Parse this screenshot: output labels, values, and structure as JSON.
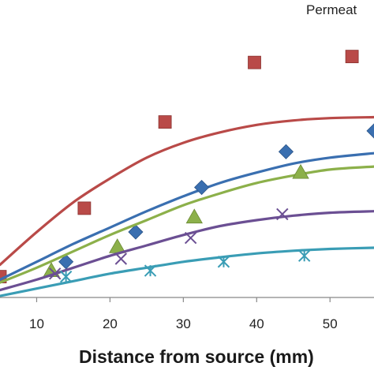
{
  "chart_data": {
    "type": "scatter",
    "title": "",
    "legend_title": "Permeat",
    "xlabel": "Distance from source  (mm)",
    "ylabel": "",
    "xlim": [
      5,
      56
    ],
    "ylim": [
      0,
      1
    ],
    "x_ticks": [
      "10",
      "20",
      "30",
      "40",
      "50"
    ],
    "x_tick_values": [
      10,
      20,
      30,
      40,
      50
    ],
    "grid": false,
    "legend_position": "top-right",
    "series": [
      {
        "color": "#b94a48",
        "marker": "square",
        "points": [
          {
            "x": 5,
            "y": 0.07
          },
          {
            "x": 16.5,
            "y": 0.3
          },
          {
            "x": 27.5,
            "y": 0.59
          },
          {
            "x": 39.7,
            "y": 0.79
          },
          {
            "x": 53,
            "y": 0.81
          }
        ],
        "curve": [
          {
            "x": 5,
            "y": 0.11
          },
          {
            "x": 10,
            "y": 0.22
          },
          {
            "x": 15,
            "y": 0.32
          },
          {
            "x": 20,
            "y": 0.4
          },
          {
            "x": 25,
            "y": 0.47
          },
          {
            "x": 30,
            "y": 0.52
          },
          {
            "x": 35,
            "y": 0.555
          },
          {
            "x": 40,
            "y": 0.58
          },
          {
            "x": 45,
            "y": 0.595
          },
          {
            "x": 50,
            "y": 0.603
          },
          {
            "x": 56,
            "y": 0.606
          }
        ]
      },
      {
        "color": "#3a6fb0",
        "marker": "diamond",
        "points": [
          {
            "x": 14,
            "y": 0.12
          },
          {
            "x": 23.5,
            "y": 0.22
          },
          {
            "x": 32.5,
            "y": 0.37
          },
          {
            "x": 44,
            "y": 0.49
          },
          {
            "x": 56,
            "y": 0.56
          }
        ],
        "curve": [
          {
            "x": 5,
            "y": 0.06
          },
          {
            "x": 10,
            "y": 0.12
          },
          {
            "x": 15,
            "y": 0.18
          },
          {
            "x": 20,
            "y": 0.235
          },
          {
            "x": 25,
            "y": 0.29
          },
          {
            "x": 30,
            "y": 0.34
          },
          {
            "x": 35,
            "y": 0.385
          },
          {
            "x": 40,
            "y": 0.42
          },
          {
            "x": 45,
            "y": 0.45
          },
          {
            "x": 50,
            "y": 0.47
          },
          {
            "x": 56,
            "y": 0.485
          }
        ]
      },
      {
        "color": "#8cb04a",
        "marker": "triangle",
        "points": [
          {
            "x": 12,
            "y": 0.09
          },
          {
            "x": 21,
            "y": 0.17
          },
          {
            "x": 31.5,
            "y": 0.27
          },
          {
            "x": 46,
            "y": 0.42
          }
        ],
        "curve": [
          {
            "x": 5,
            "y": 0.05
          },
          {
            "x": 10,
            "y": 0.1
          },
          {
            "x": 15,
            "y": 0.155
          },
          {
            "x": 20,
            "y": 0.21
          },
          {
            "x": 25,
            "y": 0.26
          },
          {
            "x": 30,
            "y": 0.31
          },
          {
            "x": 35,
            "y": 0.35
          },
          {
            "x": 40,
            "y": 0.385
          },
          {
            "x": 45,
            "y": 0.41
          },
          {
            "x": 50,
            "y": 0.43
          },
          {
            "x": 56,
            "y": 0.44
          }
        ]
      },
      {
        "color": "#6b4f93",
        "marker": "x",
        "points": [
          {
            "x": 12.5,
            "y": 0.08
          },
          {
            "x": 21.5,
            "y": 0.13
          },
          {
            "x": 31,
            "y": 0.2
          },
          {
            "x": 43.5,
            "y": 0.28
          }
        ],
        "curve": [
          {
            "x": 5,
            "y": 0.025
          },
          {
            "x": 10,
            "y": 0.06
          },
          {
            "x": 15,
            "y": 0.1
          },
          {
            "x": 20,
            "y": 0.14
          },
          {
            "x": 25,
            "y": 0.175
          },
          {
            "x": 30,
            "y": 0.21
          },
          {
            "x": 35,
            "y": 0.24
          },
          {
            "x": 40,
            "y": 0.26
          },
          {
            "x": 45,
            "y": 0.275
          },
          {
            "x": 50,
            "y": 0.285
          },
          {
            "x": 56,
            "y": 0.29
          }
        ]
      },
      {
        "color": "#3a9db5",
        "marker": "asterisk",
        "points": [
          {
            "x": 14,
            "y": 0.07
          },
          {
            "x": 25.5,
            "y": 0.09
          },
          {
            "x": 35.5,
            "y": 0.12
          },
          {
            "x": 46.5,
            "y": 0.14
          }
        ],
        "curve": [
          {
            "x": 5,
            "y": 0.005
          },
          {
            "x": 10,
            "y": 0.03
          },
          {
            "x": 15,
            "y": 0.055
          },
          {
            "x": 20,
            "y": 0.08
          },
          {
            "x": 25,
            "y": 0.1
          },
          {
            "x": 30,
            "y": 0.12
          },
          {
            "x": 35,
            "y": 0.135
          },
          {
            "x": 40,
            "y": 0.148
          },
          {
            "x": 45,
            "y": 0.157
          },
          {
            "x": 50,
            "y": 0.163
          },
          {
            "x": 56,
            "y": 0.167
          }
        ]
      }
    ]
  }
}
